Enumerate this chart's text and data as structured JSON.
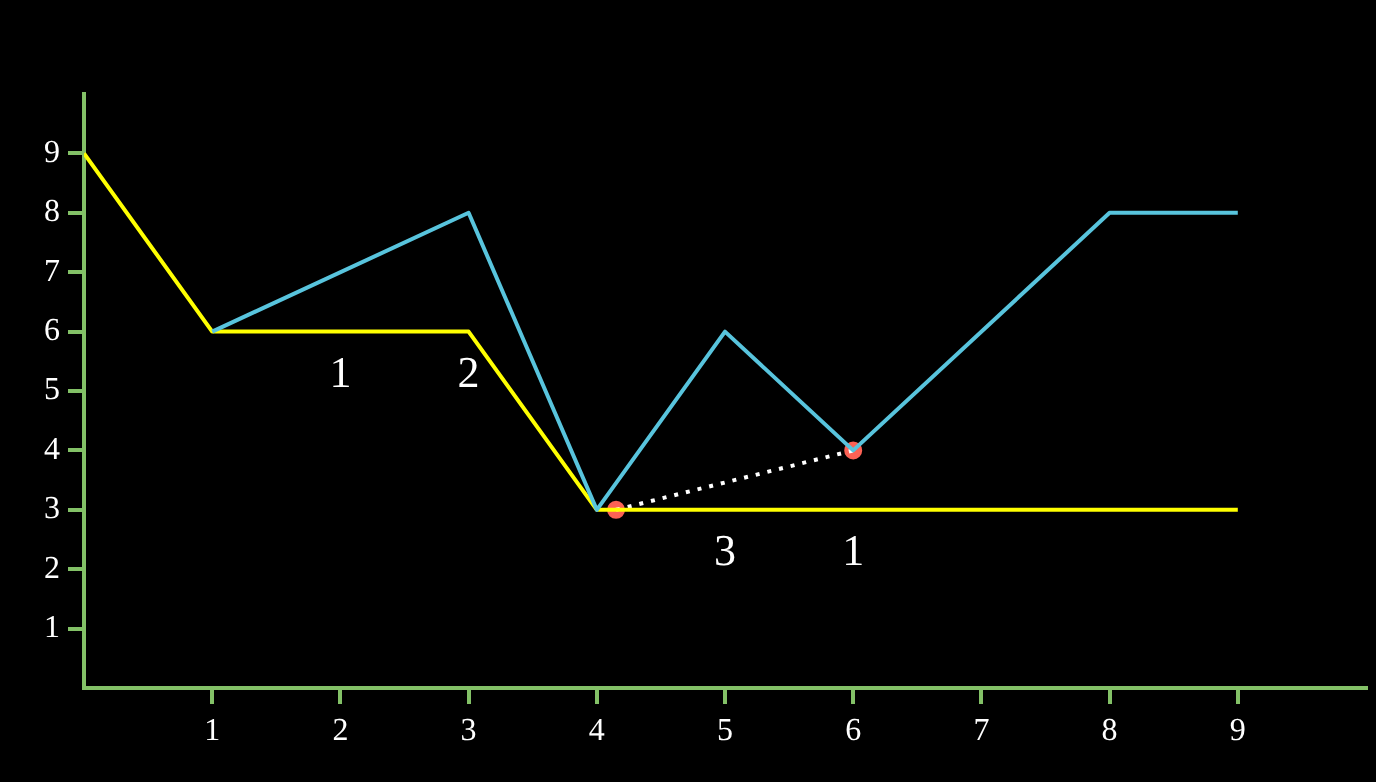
{
  "chart_data": {
    "type": "line",
    "xlim": [
      0,
      10
    ],
    "ylim": [
      0,
      10
    ],
    "xticks": [
      1,
      2,
      3,
      4,
      5,
      6,
      7,
      8,
      9
    ],
    "yticks": [
      1,
      2,
      3,
      4,
      5,
      6,
      7,
      8,
      9
    ],
    "grid": false,
    "legend": false,
    "marker": "none",
    "line_style": "solid",
    "series": [
      {
        "color": "#58c4dd",
        "x": [
          1,
          3,
          4,
          5,
          6,
          8,
          9
        ],
        "values": [
          6,
          8,
          3,
          6,
          4,
          8,
          8
        ]
      },
      {
        "color": "#ffff00",
        "x": [
          0,
          1,
          3,
          4,
          9
        ],
        "values": [
          9,
          6,
          6,
          3,
          3
        ]
      },
      {
        "type": "line",
        "color": "#ffffff",
        "line_style": "dotted",
        "x": [
          4.15,
          6
        ],
        "values": [
          3,
          4
        ]
      },
      {
        "type": "scatter",
        "color": "#fc6255",
        "marker": "circle",
        "x": [
          4.15,
          6
        ],
        "values": [
          3,
          4
        ]
      }
    ],
    "annotations": [
      {
        "text": "1",
        "x": 2,
        "y": 6
      },
      {
        "text": "2",
        "x": 3,
        "y": 6
      },
      {
        "text": "3",
        "x": 5,
        "y": 3
      },
      {
        "text": "1",
        "x": 6,
        "y": 3
      }
    ]
  }
}
